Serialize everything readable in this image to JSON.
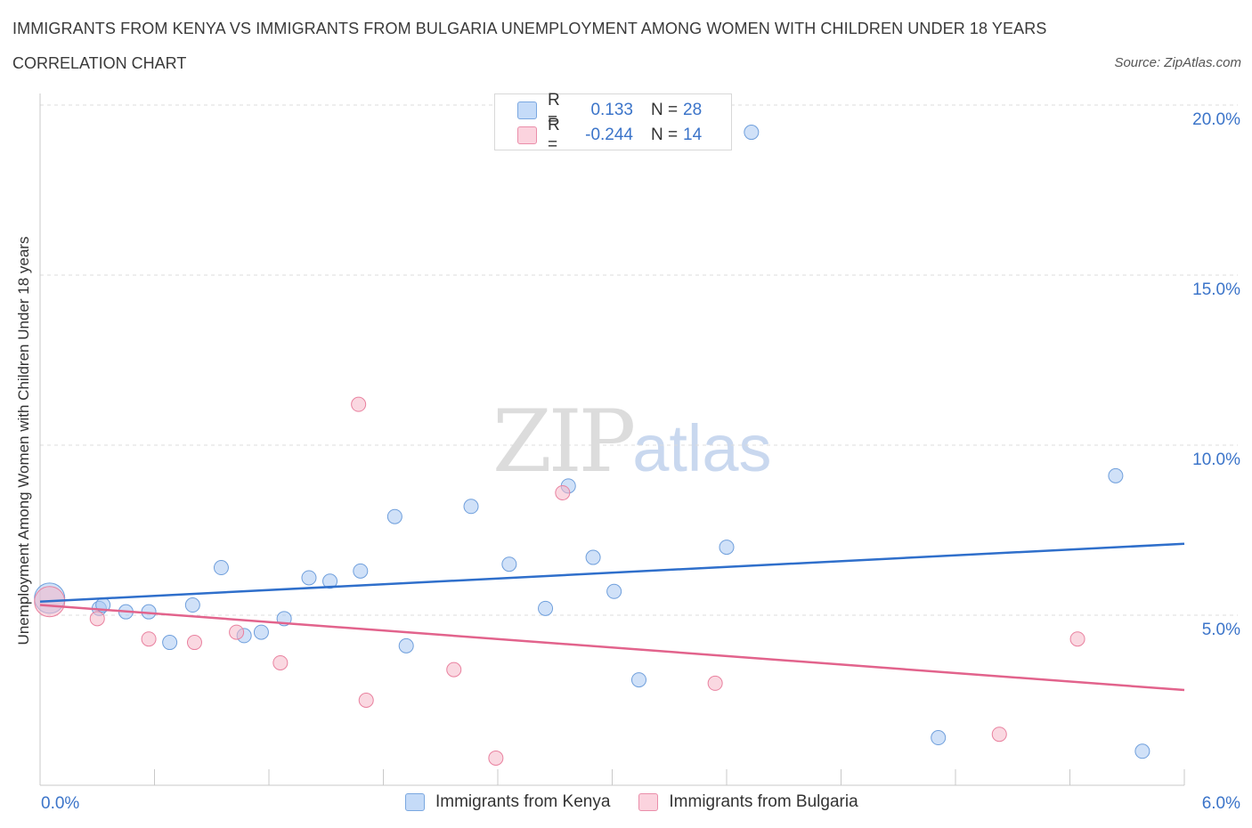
{
  "header": {
    "title": "IMMIGRANTS FROM KENYA VS IMMIGRANTS FROM BULGARIA UNEMPLOYMENT AMONG WOMEN WITH CHILDREN UNDER 18 YEARS",
    "subtitle": "CORRELATION CHART",
    "source": "Source: ZipAtlas.com"
  },
  "watermark": {
    "zip": "ZIP",
    "atlas": "atlas"
  },
  "legend": {
    "rows": [
      {
        "r_label": "R =",
        "r_value": "0.133",
        "n_label": "N =",
        "n_value": "28",
        "color": "#a9c8f3"
      },
      {
        "r_label": "R =",
        "r_value": "-0.244",
        "n_label": "N =",
        "n_value": "14",
        "color": "#f6b8c8"
      }
    ]
  },
  "bottom_legend": [
    {
      "label": "Immigrants from Kenya",
      "color": "#a9c8f3"
    },
    {
      "label": "Immigrants from Bulgaria",
      "color": "#f6b8c8"
    }
  ],
  "chart_data": {
    "type": "scatter",
    "ylabel": "Unemployment Among Women with Children Under 18 years",
    "xlim": [
      0,
      6
    ],
    "ylim": [
      0,
      20
    ],
    "x_tick_labels": [
      "0.0%",
      "6.0%"
    ],
    "y_ticks": [
      5,
      10,
      15,
      20
    ],
    "y_tick_labels": [
      "5.0%",
      "10.0%",
      "15.0%",
      "20.0%"
    ],
    "grid": true,
    "series": [
      {
        "name": "Immigrants from Kenya",
        "color": "#a9c8f3",
        "stroke": "#6f9fdc",
        "trend_color": "#2f6fcb",
        "trend": [
          [
            0,
            5.4
          ],
          [
            6,
            7.1
          ]
        ],
        "points": [
          [
            0.05,
            5.5,
            3
          ],
          [
            0.31,
            5.2,
            1
          ],
          [
            0.33,
            5.3,
            1
          ],
          [
            0.45,
            5.1,
            1
          ],
          [
            0.57,
            5.1,
            1
          ],
          [
            0.68,
            4.2,
            1
          ],
          [
            0.8,
            5.3,
            1
          ],
          [
            0.95,
            6.4,
            1
          ],
          [
            1.07,
            4.4,
            1
          ],
          [
            1.16,
            4.5,
            1
          ],
          [
            1.28,
            4.9,
            1
          ],
          [
            1.41,
            6.1,
            1
          ],
          [
            1.52,
            6.0,
            1
          ],
          [
            1.68,
            6.3,
            1
          ],
          [
            1.86,
            7.9,
            1
          ],
          [
            1.92,
            4.1,
            1
          ],
          [
            2.26,
            8.2,
            1
          ],
          [
            2.46,
            6.5,
            1
          ],
          [
            2.65,
            5.2,
            1
          ],
          [
            2.77,
            8.8,
            1
          ],
          [
            2.9,
            6.7,
            1
          ],
          [
            3.01,
            5.7,
            1
          ],
          [
            3.14,
            3.1,
            1
          ],
          [
            3.6,
            7.0,
            1
          ],
          [
            3.73,
            19.2,
            1
          ],
          [
            4.71,
            1.4,
            1
          ],
          [
            5.64,
            9.1,
            1
          ],
          [
            5.78,
            1.0,
            1
          ]
        ]
      },
      {
        "name": "Immigrants from Bulgaria",
        "color": "#f6b8c8",
        "stroke": "#e9819f",
        "trend_color": "#e2638c",
        "trend": [
          [
            0,
            5.3
          ],
          [
            6,
            2.8
          ]
        ],
        "points": [
          [
            0.05,
            5.4,
            3
          ],
          [
            0.3,
            4.9,
            1
          ],
          [
            0.57,
            4.3,
            1
          ],
          [
            0.81,
            4.2,
            1
          ],
          [
            1.03,
            4.5,
            1
          ],
          [
            1.26,
            3.6,
            1
          ],
          [
            1.67,
            11.2,
            1
          ],
          [
            1.71,
            2.5,
            1
          ],
          [
            2.17,
            3.4,
            1
          ],
          [
            2.39,
            0.8,
            1
          ],
          [
            2.74,
            8.6,
            1
          ],
          [
            3.54,
            3.0,
            1
          ],
          [
            5.03,
            1.5,
            1
          ],
          [
            5.44,
            4.3,
            1
          ]
        ]
      }
    ]
  }
}
